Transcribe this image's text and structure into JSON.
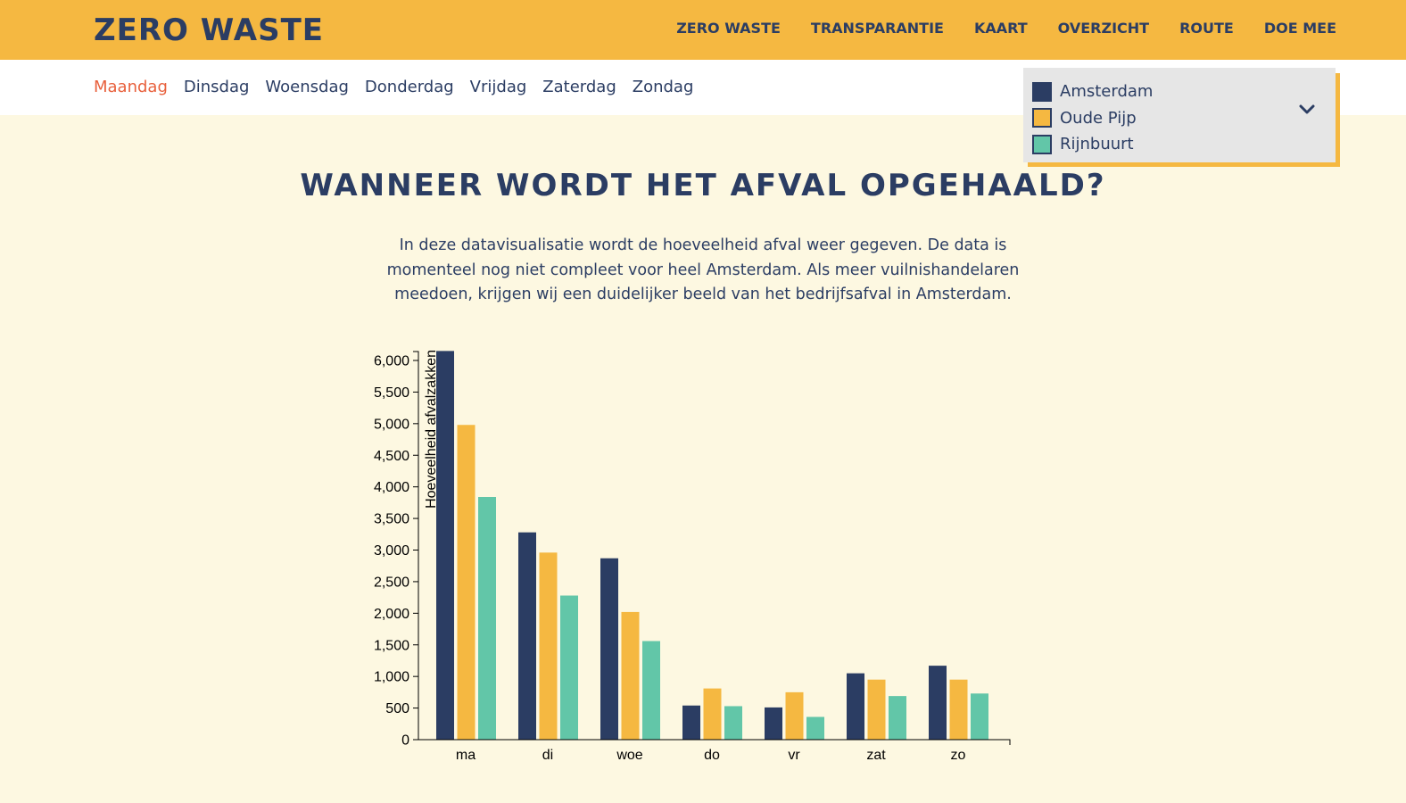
{
  "header": {
    "logo": "ZERO WASTE",
    "nav": [
      "ZERO WASTE",
      "TRANSPARANTIE",
      "KAART",
      "OVERZICHT",
      "ROUTE",
      "DOE MEE"
    ]
  },
  "days": {
    "items": [
      "Maandag",
      "Dinsdag",
      "Woensdag",
      "Donderdag",
      "Vrijdag",
      "Zaterdag",
      "Zondag"
    ],
    "active_index": 0
  },
  "legend": {
    "items": [
      {
        "label": "Amsterdam",
        "color": "#2b3d63"
      },
      {
        "label": "Oude Pijp",
        "color": "#f5b841"
      },
      {
        "label": "Rijnbuurt",
        "color": "#62c6a8"
      }
    ],
    "toggle_icon": "chevron-down-icon"
  },
  "main": {
    "title": "WANNEER WORDT HET AFVAL OPGEHAALD?",
    "intro_lines": [
      "In deze datavisualisatie wordt de hoeveelheid afval weer gegeven. De data is",
      "momenteel nog niet compleet voor heel Amsterdam. Als meer vuilnishandelaren",
      "meedoen, krijgen wij een duidelijker beeld van het bedrijfsafval in Amsterdam."
    ]
  },
  "chart_data": {
    "type": "bar",
    "ylabel": "Hoeveelheid afvalzakken",
    "xlabel": "",
    "categories": [
      "ma",
      "di",
      "woe",
      "do",
      "vr",
      "zat",
      "zo"
    ],
    "ylim": [
      0,
      6000
    ],
    "yticks": [
      0,
      500,
      1000,
      1500,
      2000,
      2500,
      3000,
      3500,
      4000,
      4500,
      5000,
      5500,
      6000
    ],
    "ytick_labels": [
      "0",
      "500",
      "1,000",
      "1,500",
      "2,000",
      "2,500",
      "3,000",
      "3,500",
      "4,000",
      "4,500",
      "5,000",
      "5,500",
      "6,000"
    ],
    "grid": false,
    "series": [
      {
        "name": "Amsterdam",
        "color": "#2b3d63",
        "values": [
          6150,
          3280,
          2870,
          540,
          510,
          1050,
          1170
        ]
      },
      {
        "name": "Oude Pijp",
        "color": "#f5b841",
        "values": [
          4980,
          2960,
          2020,
          810,
          750,
          950,
          950
        ]
      },
      {
        "name": "Rijnbuurt",
        "color": "#62c6a8",
        "values": [
          3840,
          2280,
          1560,
          530,
          360,
          690,
          730
        ]
      }
    ]
  }
}
